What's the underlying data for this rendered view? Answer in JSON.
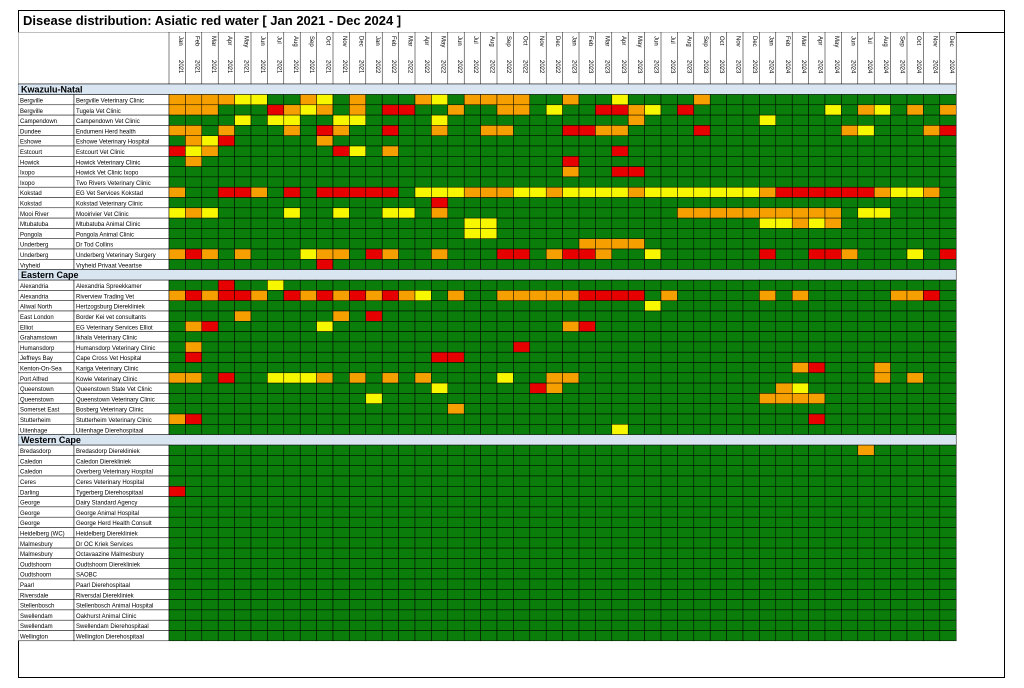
{
  "title": "Disease distribution: Asiatic red water [ Jan 2021 - Dec 2024 ]",
  "colors": {
    "green": "#0a7d0a",
    "yellow": "#f7f700",
    "orange": "#f5a000",
    "red": "#e60000",
    "section_bg": "#d9e6f2",
    "grid_line": "#000000"
  },
  "level_colors": [
    "green",
    "yellow",
    "orange",
    "red"
  ],
  "chart_data": {
    "type": "heatmap",
    "months": [
      "Jan",
      "Feb",
      "Mar",
      "Apr",
      "May",
      "Jun",
      "Jul",
      "Aug",
      "Sep",
      "Oct",
      "Nov",
      "Dec",
      "Jan",
      "Feb",
      "Mar",
      "Apr",
      "May",
      "Jun",
      "Jul",
      "Aug",
      "Sep",
      "Oct",
      "Nov",
      "Dec",
      "Jan",
      "Feb",
      "Mar",
      "Apr",
      "May",
      "Jun",
      "Jul",
      "Aug",
      "Sep",
      "Oct",
      "Nov",
      "Dec",
      "Jan",
      "Feb",
      "Mar",
      "Apr",
      "May",
      "Jun",
      "Jul",
      "Aug",
      "Sep",
      "Oct",
      "Nov",
      "Dec"
    ],
    "years": [
      "2021",
      "2021",
      "2021",
      "2021",
      "2021",
      "2021",
      "2021",
      "2021",
      "2021",
      "2021",
      "2021",
      "2021",
      "2022",
      "2022",
      "2022",
      "2022",
      "2022",
      "2022",
      "2022",
      "2022",
      "2022",
      "2022",
      "2022",
      "2022",
      "2023",
      "2023",
      "2023",
      "2023",
      "2023",
      "2023",
      "2023",
      "2023",
      "2023",
      "2023",
      "2023",
      "2023",
      "2024",
      "2024",
      "2024",
      "2024",
      "2024",
      "2024",
      "2024",
      "2024",
      "2024",
      "2024",
      "2024",
      "2024"
    ],
    "sections": [
      {
        "name": "Kwazulu-Natal",
        "rows": [
          {
            "town": "Bergville",
            "clinic": "Bergville Veterinary Clinic",
            "levels": "222211002102000210222200200100002000000000000000"
          },
          {
            "town": "Bergville",
            "clinic": "Tugela Vet Clinic",
            "levels": "222000321202033002002201003321030000000010210202"
          },
          {
            "town": "Campendown",
            "clinic": "Campendown Vet Clinic",
            "levels": "000010110011000010000000000020000000100000000000"
          },
          {
            "town": "Dundee",
            "clinic": "Endumeni Herd health",
            "levels": "220200020320030020022000332200003000000002100023"
          },
          {
            "town": "Eshowe",
            "clinic": "Eshowe Veterinary Hospital",
            "levels": "021300000200000000000000000000000000000000000000"
          },
          {
            "town": "Estcourt",
            "clinic": "Estcourt Vet Clinic",
            "levels": "312000000031020000000000000300000000000000000000"
          },
          {
            "town": "Howick",
            "clinic": "Howick Veterinary Clinic",
            "levels": "020000000000000000000000300000000000000000000000"
          },
          {
            "town": "Ixopo",
            "clinic": "Howick Vet Clinic Ixopo",
            "levels": "000000000000000000000000200330000000000000000000"
          },
          {
            "town": "Ixopo",
            "clinic": "Two Rivers Veterinary Clinic",
            "levels": "000000000000000000000000000000000000000000000000"
          },
          {
            "town": "Kokstad",
            "clinic": "EG Vet Services Kokstad",
            "levels": "200332030333330111222112111121111111233333321120"
          },
          {
            "town": "Kokstad",
            "clinic": "Kokstad Veterinary Clinic",
            "levels": "000000000000000030000000000000000000000000000000"
          },
          {
            "town": "Mooi River",
            "clinic": "Mooirivier Vet Clinic",
            "levels": "121000010010011020000000000000022222222220110000"
          },
          {
            "town": "Mtubatuba",
            "clinic": "Mtubatuba Animal Clinic",
            "levels": "000000000000000000110000000000000000112120000000"
          },
          {
            "town": "Pongola",
            "clinic": "Pongola Animal Clinic",
            "levels": "000000000000000000110000000000000000000000000000"
          },
          {
            "town": "Underberg",
            "clinic": "Dr Tod Collins",
            "levels": "000000000000000000000000022220000000000000000000"
          },
          {
            "town": "Underberg",
            "clinic": "Underberg Veterinary Surgery",
            "levels": "232020001220320020003302332001000000300332000103"
          },
          {
            "town": "Vryheid",
            "clinic": "Vryheid Privaat Veeartse",
            "levels": "000000000300000000000000000000000000000000000000"
          }
        ]
      },
      {
        "name": "Eastern Cape",
        "rows": [
          {
            "town": "Alexandria",
            "clinic": "Alexandria Spreekkamer",
            "levels": "000300100000000000000000000000000000000000000000"
          },
          {
            "town": "Alexandria",
            "clinic": "Riverview Trading Vet",
            "levels": "232332032323232102002222233330200000202000002230"
          },
          {
            "town": "Aliwal North",
            "clinic": "Hertzogsburg Dierekliniek",
            "levels": "000000000000000000000000000001000000000000000000"
          },
          {
            "town": "East London",
            "clinic": "Border Kei vet consultants",
            "levels": "000020000020300000000000000000000000000000000000"
          },
          {
            "town": "Elliot",
            "clinic": "EG Veterinary Services Elliot",
            "levels": "023000000100000000000000230000000000000000000000"
          },
          {
            "town": "Grahamstown",
            "clinic": "Ikhala Veterinary Clinic",
            "levels": "000000000000000000000000000000000000000000000000"
          },
          {
            "town": "Humansdorp",
            "clinic": "Humansdorp Veterinary Clinic",
            "levels": "020000000000000000000300000000000000000000000000"
          },
          {
            "town": "Jeffreys Bay",
            "clinic": "Cape Cross Vet Hospital",
            "levels": "030000000000000033000000000000000000000000000000"
          },
          {
            "town": "Kenton-On-Sea",
            "clinic": "Kariga Veterinary Clinic",
            "levels": "000000000000000000000000000000000000002300020000"
          },
          {
            "town": "Port Alfred",
            "clinic": "Kowie Veterinary Clinic",
            "levels": "220300111202020200001002200000000000000000020200"
          },
          {
            "town": "Queenstown",
            "clinic": "Queenstown State Vet Clinic",
            "levels": "000000000000000010000032000000000000021000000000"
          },
          {
            "town": "Queenstown",
            "clinic": "Queenstown Veterinary Clinic",
            "levels": "000000000000100000000000000000000000222200000000"
          },
          {
            "town": "Somerset East",
            "clinic": "Bosberg Veterinary Clinic",
            "levels": "000000000000000002000000000000000000000000000000"
          },
          {
            "town": "Stutterheim",
            "clinic": "Stutterheim Veterinary Clinic",
            "levels": "230000000000000000000000000000000000000300000000"
          },
          {
            "town": "Uitenhage",
            "clinic": "Uitenhage Dierehospitaal",
            "levels": "000000000000000000000000000100000000000000000000"
          }
        ]
      },
      {
        "name": "Western Cape",
        "rows": [
          {
            "town": "Bredasdorp",
            "clinic": "Bredasdorp Dierekliniek",
            "levels": "000000000000000000000000000000000000000000200000"
          },
          {
            "town": "Caledon",
            "clinic": "Caledon Dierekliniek",
            "levels": "000000000000000000000000000000000000000000000000"
          },
          {
            "town": "Caledon",
            "clinic": "Overberg Veterinary Hospital",
            "levels": "000000000000000000000000000000000000000000000000"
          },
          {
            "town": "Ceres",
            "clinic": "Ceres Veterinary Hospital",
            "levels": "000000000000000000000000000000000000000000000000"
          },
          {
            "town": "Darling",
            "clinic": "Tygerberg Dierehospitaal",
            "levels": "300000000000000000000000000000000000000000000000"
          },
          {
            "town": "George",
            "clinic": "Dairy Standard Agency",
            "levels": "000000000000000000000000000000000000000000000000"
          },
          {
            "town": "George",
            "clinic": "George Animal Hospital",
            "levels": "000000000000000000000000000000000000000000000000"
          },
          {
            "town": "George",
            "clinic": "George Herd Health Consult",
            "levels": "000000000000000000000000000000000000000000000000"
          },
          {
            "town": "Heidelberg (WC)",
            "clinic": "Heidelberg Dierekliniek",
            "levels": "000000000000000000000000000000000000000000000000"
          },
          {
            "town": "Malmesbury",
            "clinic": "Dr OC Kriek Services",
            "levels": "000000000000000000000000000000000000000000000000"
          },
          {
            "town": "Malmesbury",
            "clinic": "Octavaazine Malmesbury",
            "levels": "000000000000000000000000000000000000000000000000"
          },
          {
            "town": "Oudtshoorn",
            "clinic": "Oudtshoorn Dierekliniek",
            "levels": "000000000000000000000000000000000000000000000000"
          },
          {
            "town": "Oudtshoorn",
            "clinic": "SAOBC",
            "levels": "000000000000000000000000000000000000000000000000"
          },
          {
            "town": "Paarl",
            "clinic": "Paarl Dierehospitaal",
            "levels": "000000000000000000000000000000000000000000000000"
          },
          {
            "town": "Riversdale",
            "clinic": "Riversdal Dierekliniek",
            "levels": "000000000000000000000000000000000000000000000000"
          },
          {
            "town": "Stellenbosch",
            "clinic": "Stellenbosch Animal Hospital",
            "levels": "000000000000000000000000000000000000000000000000"
          },
          {
            "town": "Swellendam",
            "clinic": "Oakhurst Animal Clinic",
            "levels": "000000000000000000000000000000000000000000000000"
          },
          {
            "town": "Swellendam",
            "clinic": "Swellendam Dierehospitaal",
            "levels": "000000000000000000000000000000000000000000000000"
          },
          {
            "town": "Wellington",
            "clinic": "Wellington Dierehospitaal",
            "levels": "000000000000000000000000000000000000000000000000"
          }
        ]
      }
    ]
  }
}
